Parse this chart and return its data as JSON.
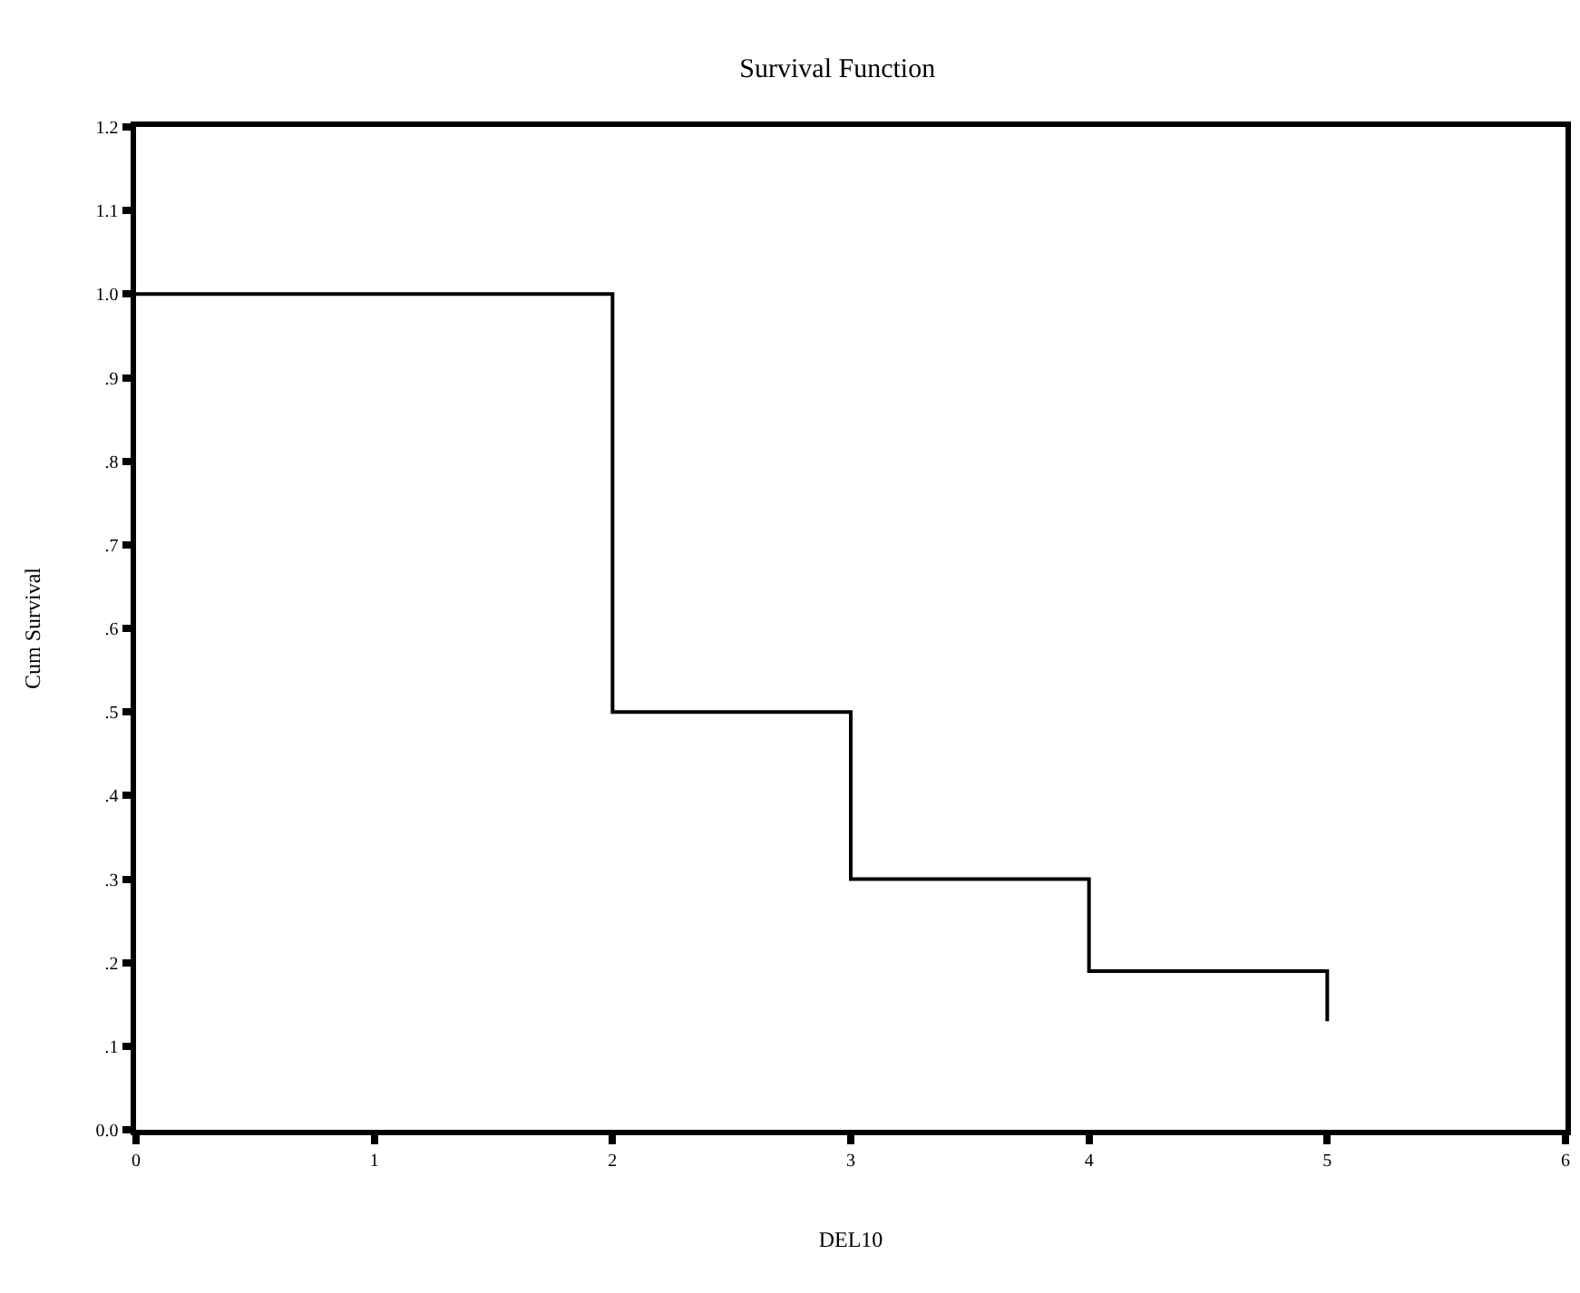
{
  "chart_data": {
    "type": "step",
    "title": "Survival Function",
    "xlabel": "DEL10",
    "ylabel": "Cum Survival",
    "x": [
      0,
      2,
      3,
      4,
      5
    ],
    "series": [
      {
        "color": "#000000",
        "values": [
          1.0,
          0.5,
          0.3,
          0.19,
          0.13
        ]
      }
    ],
    "xlim": [
      0,
      6
    ],
    "xticks": [
      0,
      1,
      2,
      3,
      4,
      5,
      6
    ],
    "ylim": [
      0,
      1.2
    ],
    "yticks": [
      {
        "value": 0,
        "label": "0.0"
      },
      {
        "value": 0.1,
        "label": ".1"
      },
      {
        "value": 0.2,
        "label": ".2"
      },
      {
        "value": 0.3,
        "label": ".3"
      },
      {
        "value": 0.4,
        "label": ".4"
      },
      {
        "value": 0.5,
        "label": ".5"
      },
      {
        "value": 0.6,
        "label": ".6"
      },
      {
        "value": 0.7,
        "label": ".7"
      },
      {
        "value": 0.8,
        "label": ".8"
      },
      {
        "value": 0.9,
        "label": ".9"
      },
      {
        "value": 1.0,
        "label": "1.0"
      },
      {
        "value": 1.1,
        "label": "1.1"
      },
      {
        "value": 1.2,
        "label": "1.2"
      }
    ],
    "marker": "none",
    "line_style": "solid"
  }
}
